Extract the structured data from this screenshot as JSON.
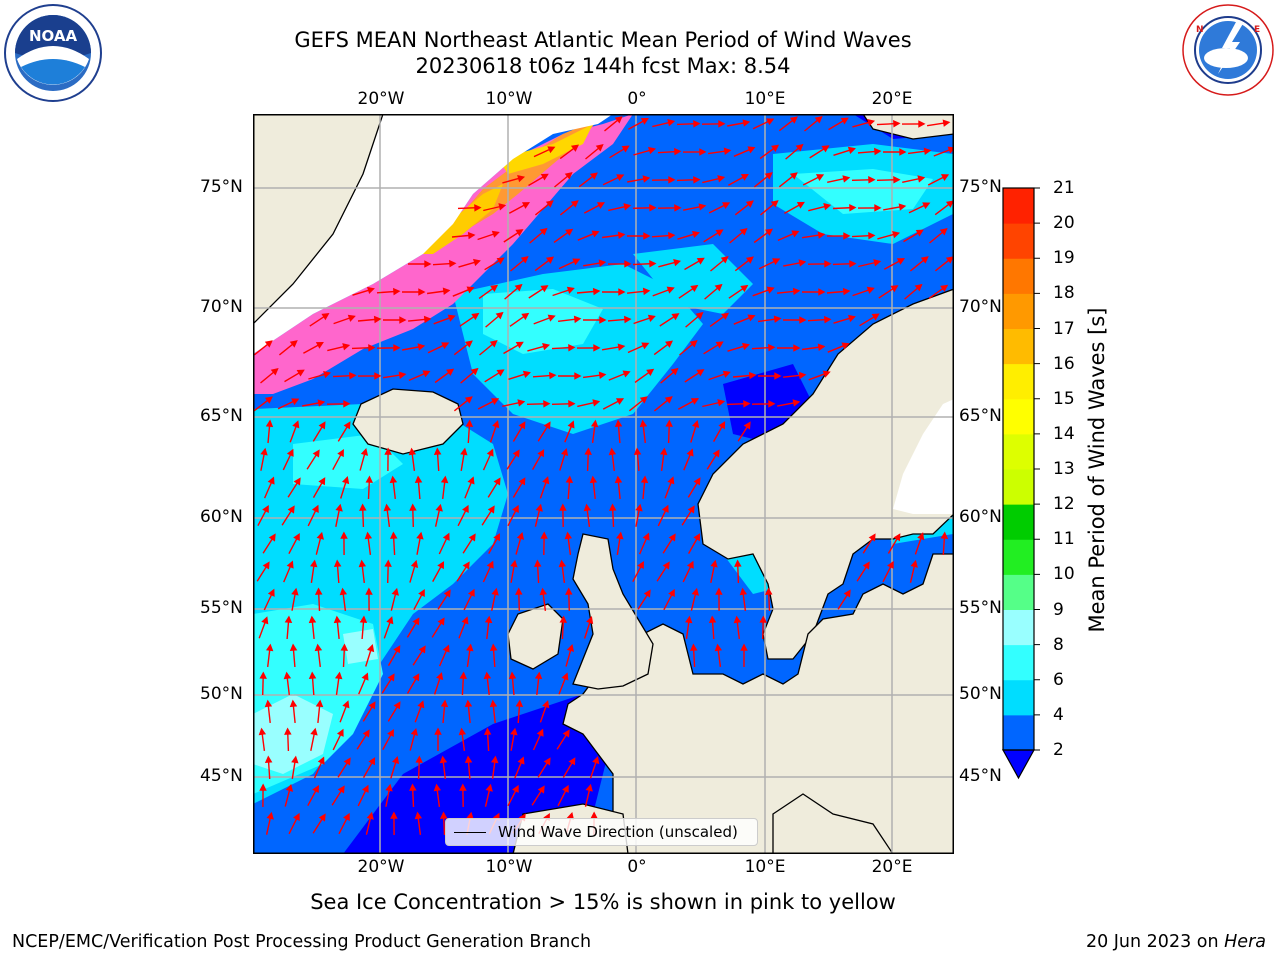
{
  "title": {
    "line1": "GEFS MEAN Northeast Atlantic Mean Period of Wind Waves",
    "line2": "20230618 t06z 144h fcst   Max: 8.54"
  },
  "logos": {
    "left": {
      "icon": "noaa-logo",
      "text": "NOAA",
      "ring_text": "NATIONAL OCEANIC AND ATMOSPHERIC ADMINISTRATION · U.S. DEPARTMENT OF COMMERCE"
    },
    "right": {
      "icon": "nws-logo",
      "ring_text": "NATIONAL WEATHER SERVICE"
    }
  },
  "map": {
    "top_lon_labels": [
      "20°W",
      "10°W",
      "0°",
      "10°E",
      "20°E"
    ],
    "bottom_lon_labels": [
      "20°W",
      "10°W",
      "0°",
      "10°E",
      "20°E"
    ],
    "left_lat_labels": [
      "75°N",
      "70°N",
      "65°N",
      "60°N",
      "55°N",
      "50°N",
      "45°N"
    ],
    "right_lat_labels": [
      "75°N",
      "70°N",
      "65°N",
      "60°N",
      "55°N",
      "50°N",
      "45°N"
    ],
    "legend_label": "Wind Wave Direction (unscaled)",
    "arrow_color": "#ff0000",
    "land_color": "#efecdc",
    "ice_note": "Sea Ice Concentration > 15% is shown in pink to yellow"
  },
  "colorbar": {
    "title": "Mean Period of Wind Waves [s]",
    "tick_labels": [
      "2",
      "4",
      "6",
      "8",
      "9",
      "10",
      "11",
      "12",
      "13",
      "14",
      "15",
      "16",
      "17",
      "18",
      "19",
      "20",
      "21"
    ],
    "colors": [
      "#0066ff",
      "#00ddff",
      "#33ffff",
      "#99ffff",
      "#55ff88",
      "#22ee22",
      "#00cc00",
      "#ccff00",
      "#ddff00",
      "#ffff00",
      "#ffee00",
      "#ffbb00",
      "#ff9900",
      "#ff7700",
      "#ff4400",
      "#ff2200"
    ],
    "extend_color": "#0000ff"
  },
  "footer": {
    "left": "NCEP/EMC/Verification Post Processing Product Generation Branch",
    "right_prefix": "20 Jun 2023 on ",
    "right_host": "Hera"
  }
}
